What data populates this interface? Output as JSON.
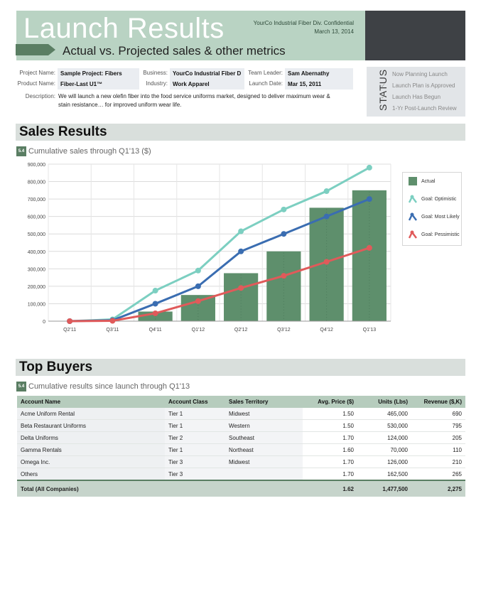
{
  "header": {
    "title": "Launch Results",
    "subtitle": "Actual vs. Projected sales & other metrics",
    "confidential": "YourCo Industrial Fiber Div. Confidential",
    "date": "March 13, 2014"
  },
  "info": {
    "project_name_label": "Project Name:",
    "project_name": "Sample Project: Fibers",
    "product_name_label": "Product Name:",
    "product_name": "Fiber-Last U1™",
    "business_label": "Business:",
    "business": "YourCo Industrial Fiber D",
    "industry_label": "Industry:",
    "industry": "Work Apparel",
    "team_leader_label": "Team Leader:",
    "team_leader": "Sam Abernathy",
    "launch_date_label": "Launch Date:",
    "launch_date": "Mar 15, 2011",
    "description_label": "Description:",
    "description": "We will launch a new olefin fiber into the food service uniforms market, designed to deliver maximum wear & stain resistance… for improved uniform wear life."
  },
  "status": {
    "label": "STATUS",
    "items": [
      "Now Planning Launch",
      "Launch Plan is Approved",
      "Launch Has Begun",
      "1-Yr Post-Launch Review"
    ]
  },
  "sales": {
    "section_title": "Sales Results",
    "badge": "5.4",
    "subtitle": "Cumulative sales through Q1'13 ($)"
  },
  "chart_data": {
    "type": "bar",
    "categories": [
      "Q2'11",
      "Q3'11",
      "Q4'11",
      "Q1'12",
      "Q2'12",
      "Q3'12",
      "Q4'12",
      "Q1'13"
    ],
    "ylim": [
      0,
      900000
    ],
    "y_ticks": [
      "0",
      "100,000",
      "200,000",
      "300,000",
      "400,000",
      "500,000",
      "600,000",
      "700,000",
      "800,000",
      "900,000"
    ],
    "grid": true,
    "legend_position": "right",
    "series": [
      {
        "name": "Actual",
        "type": "bar",
        "color": "#5e8f6c",
        "values": [
          0,
          0,
          55000,
          150000,
          275000,
          400000,
          650000,
          750000
        ]
      },
      {
        "name": "Goal: Optimistic",
        "type": "line",
        "color": "#7ccfc1",
        "values": [
          0,
          10000,
          175000,
          290000,
          515000,
          640000,
          745000,
          880000
        ]
      },
      {
        "name": "Goal: Most Likely",
        "type": "line",
        "color": "#3a6db1",
        "values": [
          0,
          5000,
          100000,
          200000,
          400000,
          500000,
          600000,
          700000
        ]
      },
      {
        "name": "Goal: Pessimistic",
        "type": "line",
        "color": "#e05a5a",
        "values": [
          0,
          2000,
          45000,
          115000,
          190000,
          260000,
          340000,
          420000
        ]
      }
    ]
  },
  "buyers": {
    "section_title": "Top Buyers",
    "badge": "5.4",
    "subtitle": "Cumulative results since launch through Q1'13",
    "columns": [
      "Account Name",
      "Account Class",
      "Sales Territory",
      "Avg. Price ($)",
      "Units (Lbs)",
      "Revenue ($,K)"
    ],
    "rows": [
      [
        "Acme Uniform Rental",
        "Tier 1",
        "Midwest",
        "1.50",
        "465,000",
        "690"
      ],
      [
        "Beta Restaurant Uniforms",
        "Tier 1",
        "Western",
        "1.50",
        "530,000",
        "795"
      ],
      [
        "Delta Uniforms",
        "Tier 2",
        "Southeast",
        "1.70",
        "124,000",
        "205"
      ],
      [
        "Gamma Rentals",
        "Tier 1",
        "Northeast",
        "1.60",
        "70,000",
        "110"
      ],
      [
        "Omega Inc.",
        "Tier 3",
        "Midwest",
        "1.70",
        "126,000",
        "210"
      ],
      [
        "Others",
        "Tier 3",
        "",
        "1.70",
        "162,500",
        "265"
      ]
    ],
    "total": [
      "Total (All Companies)",
      "",
      "",
      "1.62",
      "1,477,500",
      "2,275"
    ]
  }
}
